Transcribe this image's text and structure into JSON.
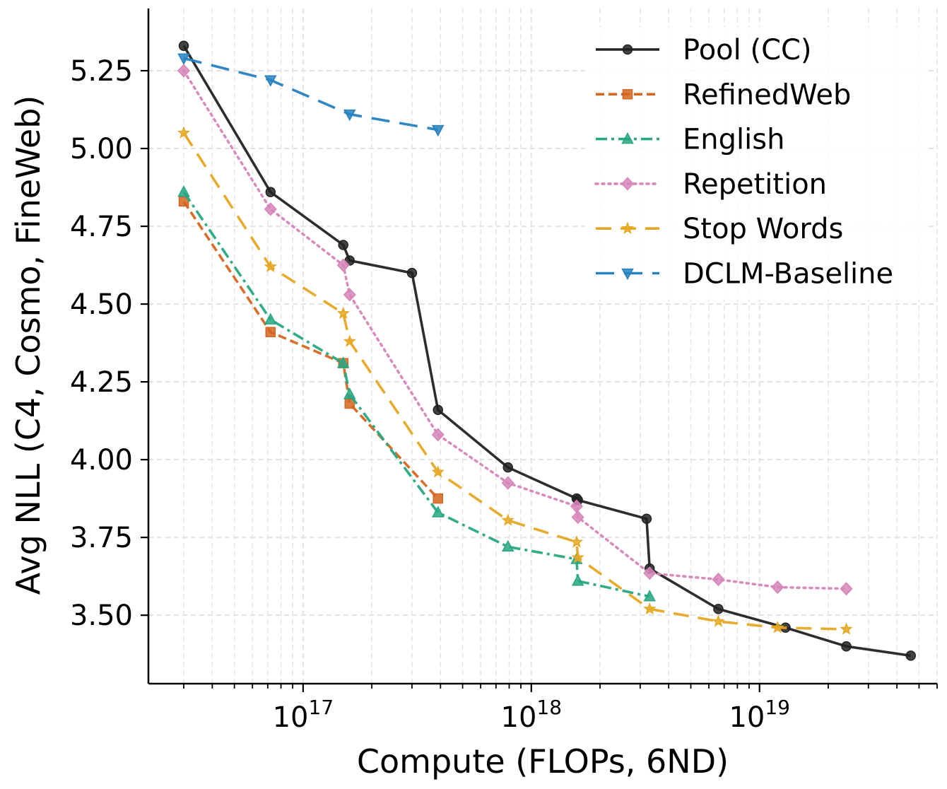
{
  "chart_data": {
    "type": "line",
    "title": "",
    "xlabel": "Compute (FLOPs, 6ND)",
    "ylabel": "Avg NLL (C4, Cosmo, FineWeb)",
    "xscale": "log",
    "xlim": [
      2.1e+16,
      6e+19
    ],
    "ylim": [
      3.28,
      5.45
    ],
    "grid": true,
    "legend_position": "top-right",
    "x_ticks": [
      {
        "value": 1e+17,
        "base": "10",
        "exp": "17"
      },
      {
        "value": 1e+18,
        "base": "10",
        "exp": "18"
      },
      {
        "value": 1e+19,
        "base": "10",
        "exp": "19"
      }
    ],
    "y_ticks": [
      {
        "value": 3.5,
        "label": "3.50"
      },
      {
        "value": 3.75,
        "label": "3.75"
      },
      {
        "value": 4.0,
        "label": "4.00"
      },
      {
        "value": 4.25,
        "label": "4.25"
      },
      {
        "value": 4.5,
        "label": "4.50"
      },
      {
        "value": 4.75,
        "label": "4.75"
      },
      {
        "value": 5.0,
        "label": "5.00"
      },
      {
        "value": 5.25,
        "label": "5.25"
      }
    ],
    "series": [
      {
        "name": "Pool (CC)",
        "color": "#222222",
        "dash": "solid",
        "marker": "circle",
        "x": [
          3e+16,
          7.2e+16,
          1.5e+17,
          1.6e+17,
          3e+17,
          3.9e+17,
          7.9e+17,
          1.58e+18,
          1.6e+18,
          3.2e+18,
          3.3e+18,
          6.6e+18,
          1.3e+19,
          2.4e+19,
          4.6e+19
        ],
        "y": [
          5.33,
          4.86,
          4.69,
          4.64,
          4.6,
          4.16,
          3.975,
          3.875,
          3.87,
          3.81,
          3.65,
          3.52,
          3.46,
          3.4,
          3.37
        ]
      },
      {
        "name": "RefinedWeb",
        "color": "#d5661f",
        "dash": "dashed",
        "marker": "square",
        "x": [
          3e+16,
          7.2e+16,
          1.5e+17,
          1.6e+17,
          3.9e+17
        ],
        "y": [
          4.83,
          4.41,
          4.31,
          4.18,
          3.875
        ]
      },
      {
        "name": "English",
        "color": "#27a882",
        "dash": "dashdot",
        "marker": "triangle-up",
        "x": [
          3e+16,
          7.2e+16,
          1.5e+17,
          1.6e+17,
          3.9e+17,
          7.9e+17,
          1.58e+18,
          1.6e+18,
          3.3e+18
        ],
        "y": [
          4.86,
          4.45,
          4.31,
          4.21,
          3.83,
          3.72,
          3.68,
          3.61,
          3.56
        ]
      },
      {
        "name": "Repetition",
        "color": "#d685b8",
        "dash": "dotted",
        "marker": "diamond",
        "x": [
          3e+16,
          7.2e+16,
          1.5e+17,
          1.6e+17,
          3.9e+17,
          7.9e+17,
          1.58e+18,
          1.6e+18,
          3.3e+18,
          6.6e+18,
          1.2e+19,
          2.4e+19
        ],
        "y": [
          5.25,
          4.805,
          4.625,
          4.53,
          4.08,
          3.925,
          3.85,
          3.815,
          3.635,
          3.615,
          3.59,
          3.585
        ]
      },
      {
        "name": "Stop Words",
        "color": "#e6a722",
        "dash": "longdash",
        "marker": "star",
        "x": [
          3e+16,
          7.2e+16,
          1.5e+17,
          1.6e+17,
          3.9e+17,
          7.9e+17,
          1.58e+18,
          1.6e+18,
          3.3e+18,
          6.6e+18,
          1.2e+19,
          2.4e+19
        ],
        "y": [
          5.05,
          4.62,
          4.47,
          4.38,
          3.96,
          3.805,
          3.735,
          3.685,
          3.52,
          3.48,
          3.46,
          3.455
        ]
      },
      {
        "name": "DCLM-Baseline",
        "color": "#2681c0",
        "dash": "dashed-long",
        "marker": "triangle-down",
        "x": [
          3e+16,
          7.2e+16,
          1.6e+17,
          3.9e+17
        ],
        "y": [
          5.29,
          5.22,
          5.11,
          5.06
        ]
      }
    ]
  }
}
